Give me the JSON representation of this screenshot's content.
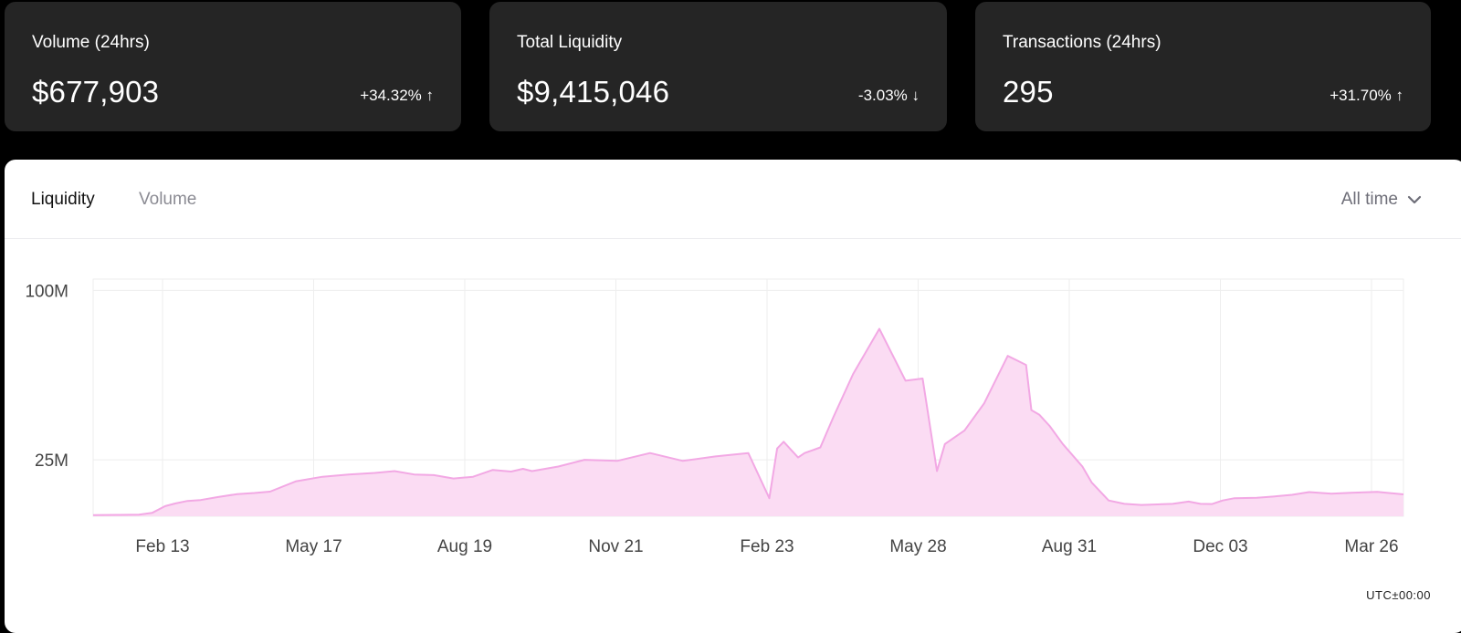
{
  "stats": [
    {
      "title": "Volume (24hrs)",
      "value": "$677,903",
      "change": "+34.32% ↑"
    },
    {
      "title": "Total Liquidity",
      "value": "$9,415,046",
      "change": "-3.03% ↓"
    },
    {
      "title": "Transactions (24hrs)",
      "value": "295",
      "change": "+31.70% ↑"
    }
  ],
  "chart_panel": {
    "tabs": [
      "Liquidity",
      "Volume"
    ],
    "active_tab": "Liquidity",
    "range_label": "All time",
    "timezone": "UTC±00:00"
  },
  "colors": {
    "fill": "#fbdcf3",
    "stroke": "#f2a8e4",
    "grid": "#eeeeee"
  },
  "chart_data": {
    "type": "area",
    "title": "Liquidity",
    "y_ticks": [
      {
        "label": "100M",
        "value": 100
      },
      {
        "label": "25M",
        "value": 25
      }
    ],
    "x_ticks": [
      "Feb 13",
      "May 17",
      "Aug 19",
      "Nov 21",
      "Feb 23",
      "May 28",
      "Aug 31",
      "Dec 03",
      "Mar 26"
    ],
    "ylim": [
      0,
      105
    ],
    "xlim": [
      0,
      100
    ],
    "series": [
      {
        "name": "Liquidity (M USD)",
        "x": [
          0,
          2,
          3.5,
          4.5,
          5.5,
          6.3,
          7.2,
          8.2,
          9.5,
          11,
          12.3,
          13.5,
          15.5,
          17.5,
          19.5,
          21.5,
          23,
          24.5,
          26,
          27.5,
          29,
          30.5,
          31.9,
          32.8,
          33.5,
          35.5,
          37.5,
          40,
          42.5,
          45,
          47.5,
          50,
          51.6,
          52.2,
          52.7,
          53.8,
          54.3,
          55.5,
          56.5,
          58,
          60,
          62,
          63.3,
          64.4,
          65,
          66.5,
          68,
          69.8,
          70.5,
          71.2,
          71.6,
          72.2,
          73,
          74,
          75.5,
          76.2,
          77.5,
          78.7,
          80,
          81,
          82.4,
          83.6,
          84.5,
          85.4,
          86.2,
          87.1,
          88.8,
          90.2,
          91.5,
          92.8,
          94.5,
          96,
          98,
          100
        ],
        "y": [
          0.5,
          0.6,
          0.7,
          1.5,
          4.5,
          5.7,
          6.8,
          7.2,
          8.5,
          9.8,
          10.3,
          10.9,
          15.5,
          17.5,
          18.5,
          19.2,
          20,
          18.5,
          18.2,
          16.7,
          17.5,
          20.5,
          19.8,
          21,
          20,
          22,
          25,
          24.5,
          28,
          24.5,
          26.5,
          28,
          8,
          30,
          33,
          26,
          28,
          30.5,
          44,
          63,
          83,
          60,
          61,
          20,
          32,
          38,
          50,
          71,
          69,
          67,
          47,
          45,
          40,
          32,
          22,
          15,
          7,
          5.5,
          5,
          5.2,
          5.5,
          6.5,
          5.5,
          5.4,
          7,
          8,
          8.2,
          8.8,
          9.5,
          10.7,
          10,
          10.4,
          10.8,
          9.7
        ]
      }
    ]
  }
}
